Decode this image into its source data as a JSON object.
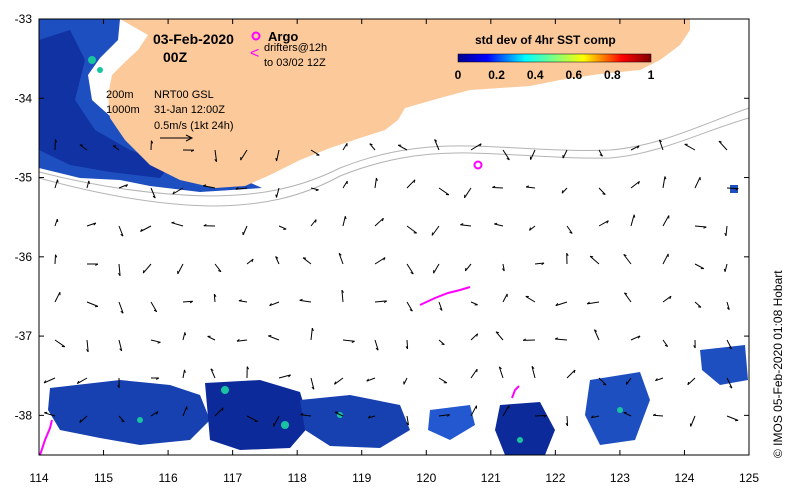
{
  "map": {
    "date": "03-Feb-2020",
    "time": "00Z",
    "x_ticks": [
      "114",
      "115",
      "116",
      "117",
      "118",
      "119",
      "120",
      "121",
      "122",
      "123",
      "124",
      "125"
    ],
    "y_ticks": [
      "-33",
      "-34",
      "-35",
      "-36",
      "-37",
      "-38"
    ],
    "lon_range": [
      114,
      125
    ],
    "lat_range": [
      -38.5,
      -33
    ],
    "land_color": "#fbc99a",
    "argo_color": "#ff00ff"
  },
  "legend": {
    "argo_label": "Argo",
    "drifters_label": "drifters@12h",
    "drifters_sub": "to 03/02 12Z"
  },
  "contours": {
    "label_200": "200m",
    "label_1000": "1000m",
    "source": "NRT00 GSL",
    "source_date": "31-Jan 12:00Z",
    "scale": "0.5m/s (1kt 24h)"
  },
  "colorbar": {
    "title": "std dev of 4hr SST comp",
    "ticks": [
      "0",
      "0.2",
      "0.4",
      "0.6",
      "0.8",
      "1"
    ],
    "range": [
      0,
      1
    ]
  },
  "credit": "© IMOS 05-Feb-2020 01:08 Hobart"
}
